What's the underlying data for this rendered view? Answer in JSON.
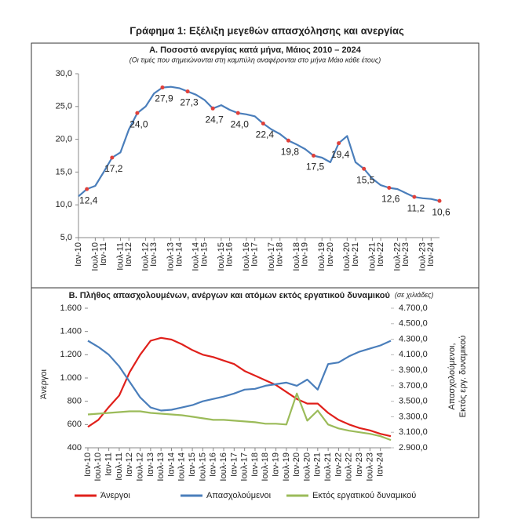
{
  "title": "Γράφημα 1: Εξέλιξη μεγεθών απασχόλησης και ανεργίας",
  "chart_data": [
    {
      "type": "line",
      "title": "Α. Ποσοστό ανεργίας κατά μήνα, Μάιος 2010 – 2024",
      "subtitle": "(Οι τιμές που σημειώνονται στη καμπύλη αναφέρονται στο μήνα Μάιο κάθε έτους)",
      "categories": [
        "Ιαν-10",
        null,
        "Ιουλ-10",
        "Ιαν-11",
        null,
        "Ιουλ-11",
        "Ιαν-12",
        null,
        "Ιουλ-12",
        "Ιαν-13",
        null,
        "Ιουλ-13",
        "Ιαν-14",
        null,
        "Ιουλ-14",
        "Ιαν-15",
        null,
        "Ιουλ-15",
        "Ιαν-16",
        null,
        "Ιουλ-16",
        "Ιαν-17",
        null,
        "Ιουλ-17",
        "Ιαν-18",
        null,
        "Ιουλ-18",
        "Ιαν-19",
        null,
        "Ιουλ-19",
        "Ιαν-20",
        null,
        "Ιουλ-20",
        "Ιαν-21",
        null,
        "Ιουλ-21",
        "Ιαν-22",
        null,
        "Ιουλ-22",
        "Ιαν-23",
        null,
        "Ιουλ-23",
        "Ιαν-24",
        null
      ],
      "values": [
        11.3,
        12.4,
        12.9,
        15.0,
        17.2,
        18.0,
        21.5,
        24.0,
        25.0,
        27.0,
        27.9,
        28.0,
        27.8,
        27.3,
        26.8,
        26.0,
        24.7,
        25.2,
        24.5,
        24.0,
        23.8,
        23.5,
        22.4,
        21.5,
        20.8,
        19.8,
        19.2,
        18.5,
        17.5,
        17.2,
        16.5,
        19.4,
        20.5,
        16.5,
        15.5,
        14.0,
        13.0,
        12.6,
        12.4,
        11.8,
        11.2,
        11.0,
        10.9,
        10.6
      ],
      "value_labels": [
        null,
        "12,4",
        null,
        null,
        "17,2",
        null,
        null,
        "24,0",
        null,
        null,
        "27,9",
        null,
        null,
        "27,3",
        null,
        null,
        "24,7",
        null,
        null,
        "24,0",
        null,
        null,
        "22,4",
        null,
        null,
        "19,8",
        null,
        null,
        "17,5",
        null,
        null,
        "19,4",
        null,
        null,
        "15,5",
        null,
        null,
        "12,6",
        null,
        null,
        "11,2",
        null,
        null,
        "10,6"
      ],
      "color": "#4a7ebb",
      "marker_color": "#e0403a",
      "ylim": [
        5,
        30
      ],
      "yticks": [
        {
          "value": 5,
          "label": "5,0"
        },
        {
          "value": 10,
          "label": "10,0"
        },
        {
          "value": 15,
          "label": "15,0"
        },
        {
          "value": 20,
          "label": "20,0"
        },
        {
          "value": 25,
          "label": "25,0"
        },
        {
          "value": 30,
          "label": "30,0"
        }
      ],
      "grid": false
    },
    {
      "type": "line",
      "title": "Β. Πλήθος απασχολουμένων, ανέργων και ατόμων εκτός εργατικού δυναμικού",
      "subtitle": "(σε χιλιάδες)",
      "ylabel": "Άνεργοι",
      "y2label": [
        "Απασχολούμενοι,",
        "Εκτός εργ. δυναμικού"
      ],
      "categories": [
        "Ιαν-10",
        "Ιουλ-10",
        "Ιαν-11",
        "Ιουλ-11",
        "Ιαν-12",
        "Ιουλ-12",
        "Ιαν-13",
        "Ιουλ-13",
        "Ιαν-14",
        "Ιουλ-14",
        "Ιαν-15",
        "Ιουλ-15",
        "Ιαν-16",
        "Ιουλ-16",
        "Ιαν-17",
        "Ιουλ-17",
        "Ιαν-18",
        "Ιουλ-18",
        "Ιαν-19",
        "Ιουλ-19",
        "Ιαν-20",
        "Ιουλ-20",
        "Ιαν-21",
        "Ιουλ-21",
        "Ιαν-22",
        "Ιουλ-22",
        "Ιαν-23",
        "Ιουλ-23",
        "Ιαν-24",
        null
      ],
      "series": [
        {
          "name": "Άνεργοι",
          "color": "#e0201b",
          "values": [
            580,
            640,
            750,
            850,
            1050,
            1200,
            1320,
            1345,
            1330,
            1290,
            1240,
            1200,
            1180,
            1150,
            1120,
            1060,
            1020,
            980,
            940,
            880,
            820,
            780,
            780,
            700,
            640,
            600,
            570,
            550,
            520,
            500
          ]
        },
        {
          "name": "Απασχολούμενοι",
          "color": "#4a7ebb",
          "axis": "y2",
          "values": [
            4280,
            4200,
            4100,
            3950,
            3750,
            3550,
            3420,
            3380,
            3390,
            3420,
            3450,
            3500,
            3530,
            3560,
            3600,
            3650,
            3660,
            3700,
            3720,
            3740,
            3700,
            3780,
            3650,
            3980,
            4000,
            4080,
            4140,
            4180,
            4220,
            4280
          ]
        },
        {
          "name": "Εκτός εργατικού δυναμικού",
          "color": "#9bbb59",
          "axis": "y2",
          "values": [
            3330,
            3340,
            3350,
            3360,
            3370,
            3370,
            3350,
            3340,
            3330,
            3320,
            3300,
            3280,
            3260,
            3260,
            3250,
            3240,
            3230,
            3210,
            3210,
            3200,
            3600,
            3250,
            3380,
            3200,
            3150,
            3120,
            3100,
            3080,
            3050,
            3000
          ]
        }
      ],
      "ylim": [
        400,
        1600
      ],
      "yticks": [
        400,
        600,
        800,
        {
          "value": 1000,
          "label": "1.000"
        },
        {
          "value": 1200,
          "label": "1.200"
        },
        {
          "value": 1400,
          "label": "1.400"
        },
        {
          "value": 1600,
          "label": "1.600"
        }
      ],
      "y2lim": [
        2900,
        4700
      ],
      "y2ticks": [
        {
          "value": 2900,
          "label": "2.900,0"
        },
        {
          "value": 3100,
          "label": "3.100,0"
        },
        {
          "value": 3300,
          "label": "3.300,0"
        },
        {
          "value": 3500,
          "label": "3.500,0"
        },
        {
          "value": 3700,
          "label": "3.700,0"
        },
        {
          "value": 3900,
          "label": "3.900,0"
        },
        {
          "value": 4100,
          "label": "4.100,0"
        },
        {
          "value": 4300,
          "label": "4.300,0"
        },
        {
          "value": 4500,
          "label": "4.500,0"
        },
        {
          "value": 4700,
          "label": "4.700,0"
        }
      ],
      "grid": false
    }
  ]
}
